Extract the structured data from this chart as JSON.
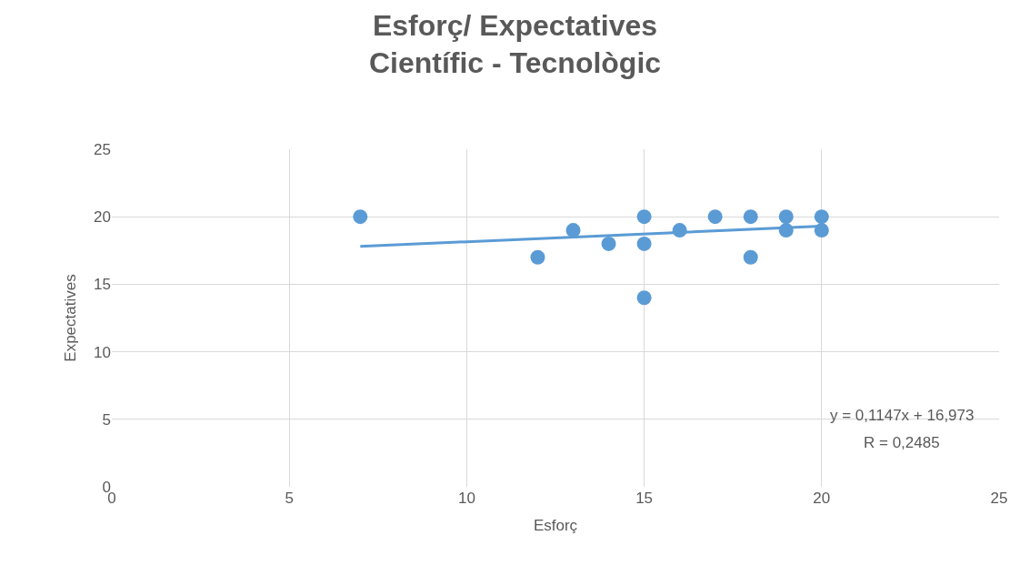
{
  "chart_data": {
    "type": "scatter",
    "title": "Esforç/ Expectatives\nCientífic - Tecnològic",
    "xlabel": "Esforç",
    "ylabel": "Expectatives",
    "series": [
      {
        "marker": "circle",
        "color": "#5b9bd5",
        "x": [
          7,
          12,
          13,
          14,
          15,
          15,
          15,
          16,
          17,
          18,
          18,
          19,
          19,
          20,
          20
        ],
        "values": [
          20,
          17,
          19,
          18,
          20,
          18,
          14,
          19,
          20,
          20,
          17,
          20,
          19,
          20,
          19
        ]
      },
      {
        "type": "line",
        "color": "#5b9bd5",
        "x": [
          7,
          20
        ],
        "values": [
          17.8,
          19.3
        ]
      }
    ],
    "annotations": [
      "y = 0,1147x + 16,973",
      "R = 0,2485"
    ],
    "xlim": [
      0,
      25
    ],
    "xticks": [
      0,
      5,
      10,
      15,
      20,
      25
    ],
    "ylim": [
      0,
      25
    ],
    "yticks": [
      0,
      5,
      10,
      15,
      20,
      25
    ],
    "grid": true
  }
}
